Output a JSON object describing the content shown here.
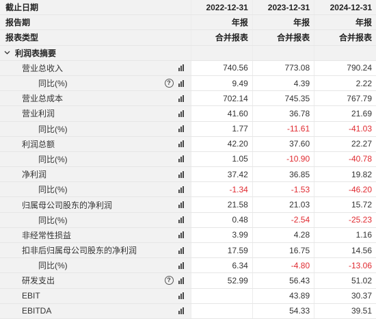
{
  "header": {
    "rows": [
      {
        "label": "截止日期",
        "values": [
          "2022-12-31",
          "2023-12-31",
          "2024-12-31"
        ]
      },
      {
        "label": "报告期",
        "values": [
          "年报",
          "年报",
          "年报"
        ]
      },
      {
        "label": "报表类型",
        "values": [
          "合并报表",
          "合并报表",
          "合并报表"
        ]
      }
    ]
  },
  "section": {
    "label": "利润表摘要",
    "chevron_icon": "chevron-down-icon"
  },
  "rows": [
    {
      "label": "营业总收入",
      "indent": 1,
      "help": false,
      "values": [
        "740.56",
        "773.08",
        "790.24"
      ]
    },
    {
      "label": "同比(%)",
      "indent": 2,
      "help": true,
      "values": [
        "9.49",
        "4.39",
        "2.22"
      ]
    },
    {
      "label": "营业总成本",
      "indent": 1,
      "help": false,
      "values": [
        "702.14",
        "745.35",
        "767.79"
      ]
    },
    {
      "label": "营业利润",
      "indent": 1,
      "help": false,
      "values": [
        "41.60",
        "36.78",
        "21.69"
      ]
    },
    {
      "label": "同比(%)",
      "indent": 2,
      "help": false,
      "values": [
        "1.77",
        "-11.61",
        "-41.03"
      ]
    },
    {
      "label": "利润总额",
      "indent": 1,
      "help": false,
      "values": [
        "42.20",
        "37.60",
        "22.27"
      ]
    },
    {
      "label": "同比(%)",
      "indent": 2,
      "help": false,
      "values": [
        "1.05",
        "-10.90",
        "-40.78"
      ]
    },
    {
      "label": "净利润",
      "indent": 1,
      "help": false,
      "values": [
        "37.42",
        "36.85",
        "19.82"
      ]
    },
    {
      "label": "同比(%)",
      "indent": 2,
      "help": false,
      "values": [
        "-1.34",
        "-1.53",
        "-46.20"
      ]
    },
    {
      "label": "归属母公司股东的净利润",
      "indent": 1,
      "help": false,
      "values": [
        "21.58",
        "21.03",
        "15.72"
      ]
    },
    {
      "label": "同比(%)",
      "indent": 2,
      "help": false,
      "values": [
        "0.48",
        "-2.54",
        "-25.23"
      ]
    },
    {
      "label": "非经常性损益",
      "indent": 1,
      "help": false,
      "values": [
        "3.99",
        "4.28",
        "1.16"
      ]
    },
    {
      "label": "扣非后归属母公司股东的净利润",
      "indent": 1,
      "help": false,
      "values": [
        "17.59",
        "16.75",
        "14.56"
      ]
    },
    {
      "label": "同比(%)",
      "indent": 2,
      "help": false,
      "values": [
        "6.34",
        "-4.80",
        "-13.06"
      ]
    },
    {
      "label": "研发支出",
      "indent": 1,
      "help": true,
      "values": [
        "52.99",
        "56.43",
        "51.02"
      ]
    },
    {
      "label": "EBIT",
      "indent": 1,
      "help": false,
      "values": [
        "",
        "43.89",
        "30.37"
      ]
    },
    {
      "label": "EBITDA",
      "indent": 1,
      "help": false,
      "values": [
        "",
        "54.33",
        "39.51"
      ]
    }
  ],
  "icons": {
    "chart": "bar-chart-icon",
    "help": "help-circle-icon"
  },
  "colors": {
    "negative": "#e0292f",
    "label_bg": "#f2f2f2",
    "border": "#e6e6e6"
  }
}
